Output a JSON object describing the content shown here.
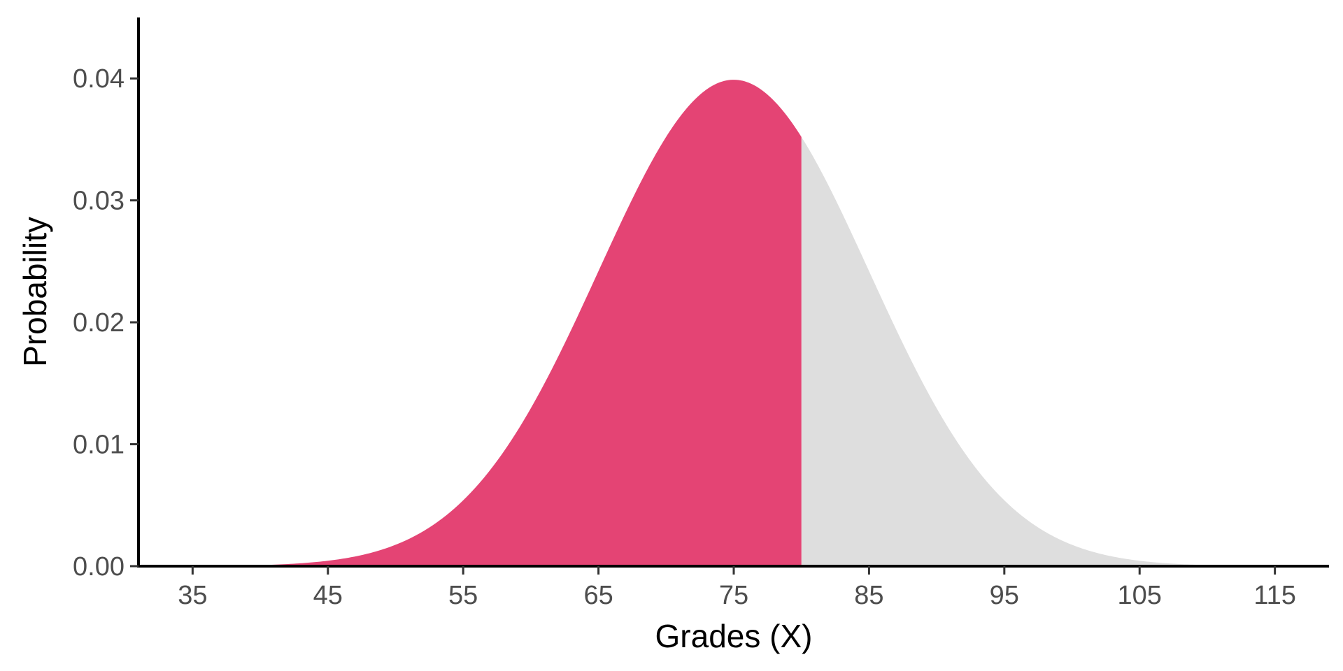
{
  "chart_data": {
    "type": "area",
    "title": "",
    "xlabel": "Grades (X)",
    "ylabel": "Probability",
    "xlim": [
      31,
      119
    ],
    "ylim": [
      0,
      0.045
    ],
    "x_ticks": [
      35,
      45,
      55,
      65,
      75,
      85,
      95,
      105,
      115
    ],
    "x_tick_labels": [
      "35",
      "45",
      "55",
      "65",
      "75",
      "85",
      "95",
      "105",
      "115"
    ],
    "y_ticks": [
      0,
      0.01,
      0.02,
      0.03,
      0.04
    ],
    "y_tick_labels": [
      "0.00",
      "0.01",
      "0.02",
      "0.03",
      "0.04"
    ],
    "distribution": {
      "family": "normal",
      "mean": 75,
      "sd": 10
    },
    "curve_range": [
      35,
      115
    ],
    "shaded_region": {
      "from": 35,
      "to": 80,
      "color": "#e44474"
    },
    "unshaded_region": {
      "from": 80,
      "to": 115,
      "color": "#dedede"
    },
    "grid": false,
    "legend": "none"
  }
}
